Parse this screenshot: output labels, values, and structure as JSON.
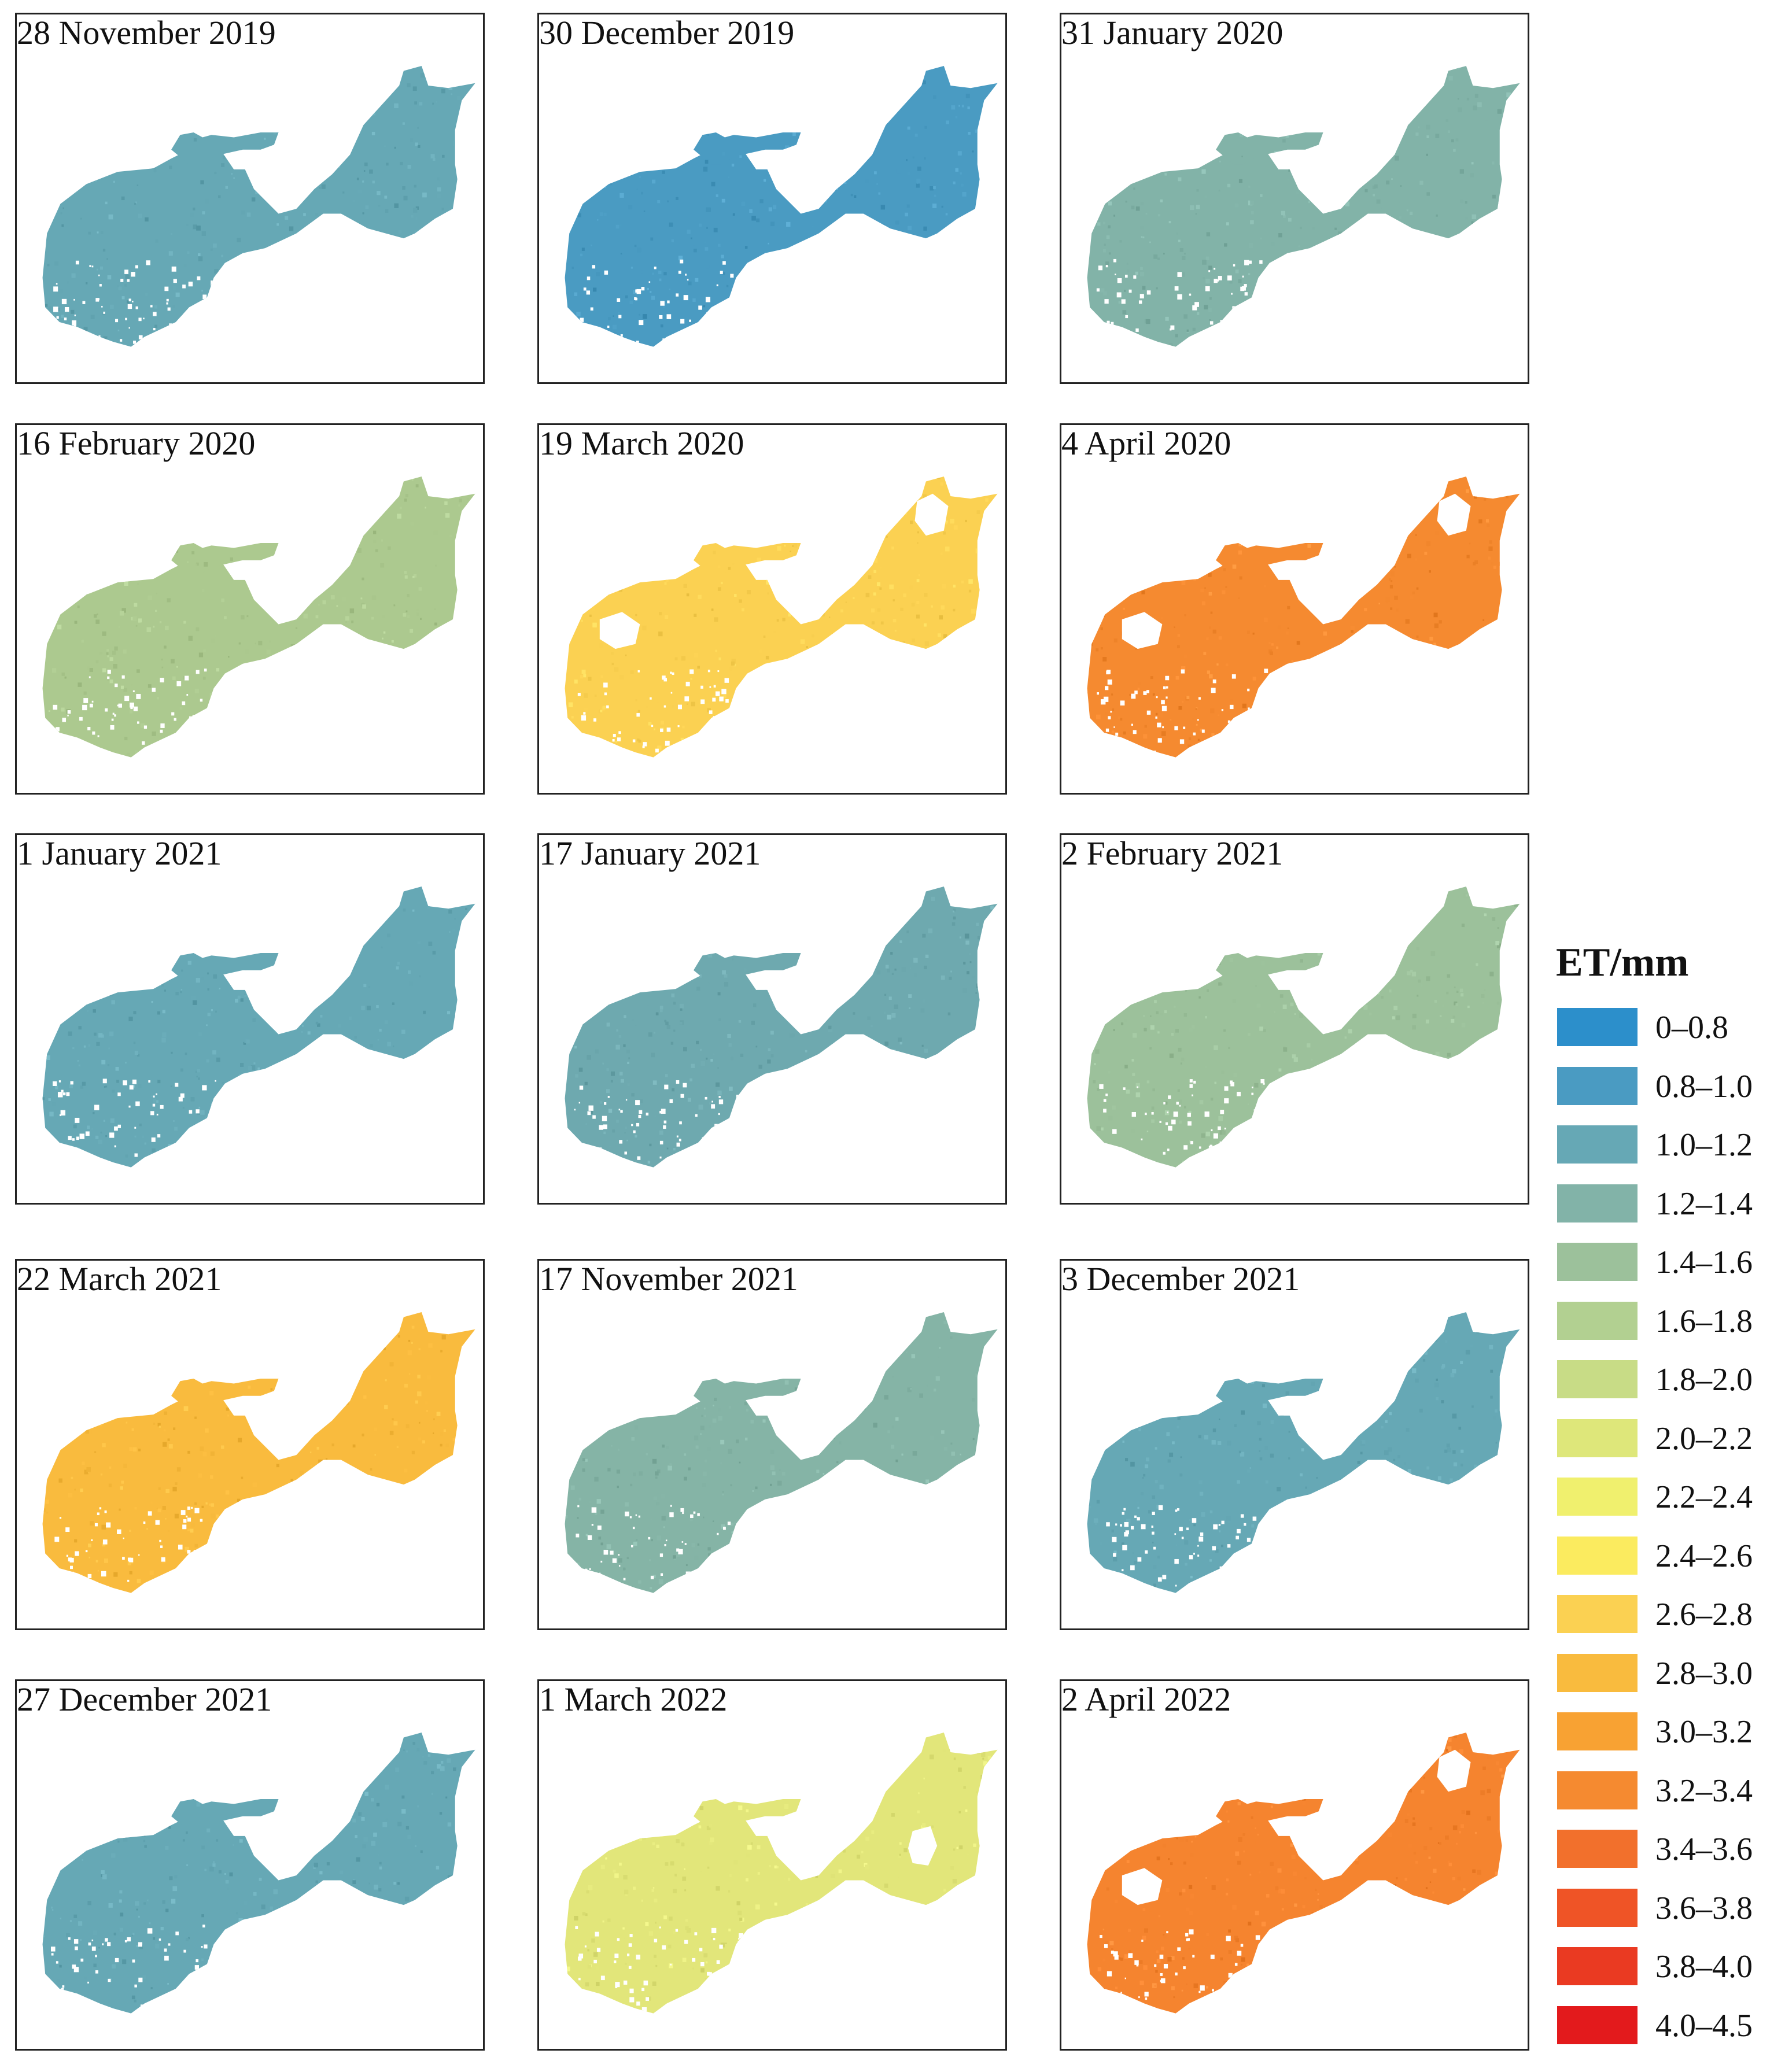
{
  "panels": [
    {
      "date": "28 November 2019",
      "color": "#66A8B5",
      "class_range": "1.0–1.2",
      "blank_patches": []
    },
    {
      "date": "30 December 2019",
      "color": "#4A9BC2",
      "class_range": "0.8–1.0",
      "blank_patches": []
    },
    {
      "date": "31 January 2020",
      "color": "#82B3A8",
      "class_range": "1.2–1.4",
      "blank_patches": []
    },
    {
      "date": "16 February 2020",
      "color": "#ACC98F",
      "class_range": "1.6–1.8",
      "blank_patches": []
    },
    {
      "date": "19 March 2020",
      "color": "#FBD152",
      "class_range": "2.6–2.8",
      "blank_patches": [
        "north-east",
        "west"
      ]
    },
    {
      "date": "4 April 2020",
      "color": "#F58A30",
      "class_range": "3.2–3.4",
      "blank_patches": [
        "north-east",
        "west"
      ]
    },
    {
      "date": "1 January 2021",
      "color": "#66A8B5",
      "class_range": "1.0–1.2",
      "blank_patches": []
    },
    {
      "date": "17 January 2021",
      "color": "#6EA9AF",
      "class_range": "1.0–1.2",
      "blank_patches": []
    },
    {
      "date": "2 February 2021",
      "color": "#9CC19B",
      "class_range": "1.4–1.6",
      "blank_patches": []
    },
    {
      "date": "22 March 2021",
      "color": "#F9BB3E",
      "class_range": "2.8–3.0",
      "blank_patches": []
    },
    {
      "date": "17 November 2021",
      "color": "#85B4A6",
      "class_range": "1.2–1.4",
      "blank_patches": []
    },
    {
      "date": "3 December 2021",
      "color": "#66A8B5",
      "class_range": "1.0–1.2",
      "blank_patches": []
    },
    {
      "date": "27 December 2021",
      "color": "#66A8B5",
      "class_range": "1.0–1.2",
      "blank_patches": []
    },
    {
      "date": "1 March 2022",
      "color": "#E2E67A",
      "class_range": "2.0–2.2",
      "blank_patches": [
        "east"
      ]
    },
    {
      "date": "2 April 2022",
      "color": "#F5842F",
      "class_range": "3.2–3.4",
      "blank_patches": [
        "north-east",
        "west"
      ]
    }
  ],
  "legend": {
    "title": "ET/mm",
    "classes": [
      {
        "label": "0–0.8",
        "color": "#2C8FCB"
      },
      {
        "label": "0.8–1.0",
        "color": "#4A9BC2"
      },
      {
        "label": "1.0–1.2",
        "color": "#66A8B5"
      },
      {
        "label": "1.2–1.4",
        "color": "#82B3A8"
      },
      {
        "label": "1.4–1.6",
        "color": "#9CC19B"
      },
      {
        "label": "1.6–1.8",
        "color": "#B2D091"
      },
      {
        "label": "1.8–2.0",
        "color": "#C8DC86"
      },
      {
        "label": "2.0–2.2",
        "color": "#DEE77A"
      },
      {
        "label": "2.2–2.4",
        "color": "#F0F06E"
      },
      {
        "label": "2.4–2.6",
        "color": "#FBEB5F"
      },
      {
        "label": "2.6–2.8",
        "color": "#FBD152"
      },
      {
        "label": "2.8–3.0",
        "color": "#F9BB3E"
      },
      {
        "label": "3.0–3.2",
        "color": "#F8A233"
      },
      {
        "label": "3.2–3.4",
        "color": "#F58A30"
      },
      {
        "label": "3.4–3.6",
        "color": "#F2702C"
      },
      {
        "label": "3.6–3.8",
        "color": "#EF5426"
      },
      {
        "label": "3.8–4.0",
        "color": "#EA3A22"
      },
      {
        "label": "4.0–4.5",
        "color": "#E31A1C"
      }
    ]
  }
}
